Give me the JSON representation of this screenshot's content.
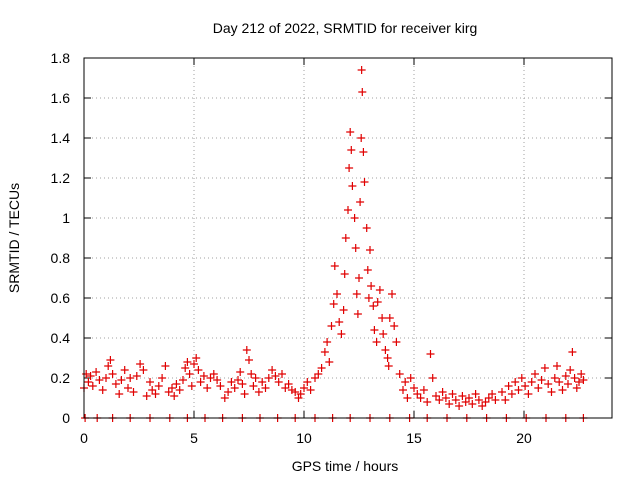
{
  "chart_data": {
    "type": "scatter",
    "title": "Day 212 of 2022, SRMTID for receiver kirg",
    "xlabel": "GPS time / hours",
    "ylabel": "SRMTID / TECUs",
    "xlim": [
      0,
      24
    ],
    "ylim": [
      0,
      1.8
    ],
    "xticks": [
      0,
      5,
      10,
      15,
      20
    ],
    "yticks": [
      0,
      0.2,
      0.4,
      0.6,
      0.8,
      1,
      1.2,
      1.4,
      1.6,
      1.8
    ],
    "xtick_labels": [
      "0",
      "5",
      "10",
      "15",
      "20"
    ],
    "ytick_labels": [
      "0",
      "0.2",
      "0.4",
      "0.6",
      "0.8",
      "1",
      "1.2",
      "1.4",
      "1.6",
      "1.8"
    ],
    "grid": true,
    "marker": "+",
    "color": "#e00000",
    "series": [
      {
        "name": "SRMTID",
        "points": [
          [
            0.0,
            0.15
          ],
          [
            0.1,
            0.22
          ],
          [
            0.2,
            0.18
          ],
          [
            0.3,
            0.21
          ],
          [
            0.4,
            0.16
          ],
          [
            0.55,
            0.23
          ],
          [
            0.7,
            0.19
          ],
          [
            0.85,
            0.14
          ],
          [
            1.0,
            0.2
          ],
          [
            1.1,
            0.26
          ],
          [
            1.2,
            0.29
          ],
          [
            1.3,
            0.22
          ],
          [
            1.45,
            0.17
          ],
          [
            1.6,
            0.12
          ],
          [
            1.7,
            0.19
          ],
          [
            1.85,
            0.24
          ],
          [
            2.0,
            0.15
          ],
          [
            2.1,
            0.2
          ],
          [
            2.25,
            0.13
          ],
          [
            2.4,
            0.21
          ],
          [
            2.55,
            0.27
          ],
          [
            2.7,
            0.24
          ],
          [
            2.85,
            0.11
          ],
          [
            3.0,
            0.18
          ],
          [
            3.1,
            0.14
          ],
          [
            3.25,
            0.12
          ],
          [
            3.4,
            0.16
          ],
          [
            3.55,
            0.2
          ],
          [
            3.7,
            0.26
          ],
          [
            3.85,
            0.13
          ],
          [
            4.0,
            0.15
          ],
          [
            4.1,
            0.11
          ],
          [
            4.2,
            0.17
          ],
          [
            4.35,
            0.14
          ],
          [
            4.5,
            0.19
          ],
          [
            4.6,
            0.25
          ],
          [
            4.7,
            0.28
          ],
          [
            4.8,
            0.22
          ],
          [
            4.9,
            0.16
          ],
          [
            5.0,
            0.27
          ],
          [
            5.1,
            0.3
          ],
          [
            5.2,
            0.24
          ],
          [
            5.3,
            0.18
          ],
          [
            5.45,
            0.21
          ],
          [
            5.6,
            0.15
          ],
          [
            5.75,
            0.2
          ],
          [
            5.9,
            0.22
          ],
          [
            6.05,
            0.19
          ],
          [
            6.2,
            0.16
          ],
          [
            6.4,
            0.1
          ],
          [
            6.55,
            0.13
          ],
          [
            6.7,
            0.18
          ],
          [
            6.85,
            0.15
          ],
          [
            7.0,
            0.19
          ],
          [
            7.1,
            0.23
          ],
          [
            7.2,
            0.17
          ],
          [
            7.3,
            0.12
          ],
          [
            7.4,
            0.34
          ],
          [
            7.5,
            0.29
          ],
          [
            7.6,
            0.22
          ],
          [
            7.7,
            0.16
          ],
          [
            7.8,
            0.2
          ],
          [
            7.95,
            0.13
          ],
          [
            8.1,
            0.18
          ],
          [
            8.25,
            0.15
          ],
          [
            8.4,
            0.2
          ],
          [
            8.55,
            0.24
          ],
          [
            8.7,
            0.21
          ],
          [
            8.85,
            0.18
          ],
          [
            9.0,
            0.22
          ],
          [
            9.15,
            0.15
          ],
          [
            9.3,
            0.17
          ],
          [
            9.45,
            0.14
          ],
          [
            9.6,
            0.13
          ],
          [
            9.75,
            0.1
          ],
          [
            9.85,
            0.12
          ],
          [
            10.0,
            0.15
          ],
          [
            10.15,
            0.18
          ],
          [
            10.3,
            0.14
          ],
          [
            10.5,
            0.2
          ],
          [
            10.65,
            0.22
          ],
          [
            10.8,
            0.25
          ],
          [
            10.95,
            0.33
          ],
          [
            11.05,
            0.38
          ],
          [
            11.15,
            0.28
          ],
          [
            11.25,
            0.46
          ],
          [
            11.35,
            0.57
          ],
          [
            11.4,
            0.76
          ],
          [
            11.5,
            0.62
          ],
          [
            11.6,
            0.48
          ],
          [
            11.7,
            0.42
          ],
          [
            11.8,
            0.54
          ],
          [
            11.85,
            0.72
          ],
          [
            11.9,
            0.9
          ],
          [
            12.0,
            1.04
          ],
          [
            12.05,
            1.25
          ],
          [
            12.1,
            1.43
          ],
          [
            12.15,
            1.34
          ],
          [
            12.2,
            1.16
          ],
          [
            12.3,
            1.0
          ],
          [
            12.35,
            0.85
          ],
          [
            12.4,
            0.62
          ],
          [
            12.45,
            0.52
          ],
          [
            12.5,
            0.7
          ],
          [
            12.55,
            1.08
          ],
          [
            12.6,
            1.4
          ],
          [
            12.62,
            1.74
          ],
          [
            12.65,
            1.63
          ],
          [
            12.7,
            1.33
          ],
          [
            12.75,
            1.18
          ],
          [
            12.85,
            0.95
          ],
          [
            12.9,
            0.74
          ],
          [
            12.95,
            0.6
          ],
          [
            13.0,
            0.84
          ],
          [
            13.05,
            0.66
          ],
          [
            13.15,
            0.56
          ],
          [
            13.2,
            0.44
          ],
          [
            13.3,
            0.38
          ],
          [
            13.35,
            0.58
          ],
          [
            13.45,
            0.64
          ],
          [
            13.55,
            0.5
          ],
          [
            13.6,
            0.42
          ],
          [
            13.7,
            0.34
          ],
          [
            13.8,
            0.3
          ],
          [
            13.85,
            0.26
          ],
          [
            13.9,
            0.5
          ],
          [
            14.0,
            0.62
          ],
          [
            14.1,
            0.46
          ],
          [
            14.2,
            0.38
          ],
          [
            14.35,
            0.22
          ],
          [
            14.5,
            0.14
          ],
          [
            14.6,
            0.18
          ],
          [
            14.7,
            0.1
          ],
          [
            14.85,
            0.2
          ],
          [
            15.0,
            0.15
          ],
          [
            15.15,
            0.12
          ],
          [
            15.3,
            0.1
          ],
          [
            15.45,
            0.14
          ],
          [
            15.6,
            0.08
          ],
          [
            15.75,
            0.32
          ],
          [
            15.85,
            0.2
          ],
          [
            16.0,
            0.11
          ],
          [
            16.15,
            0.09
          ],
          [
            16.3,
            0.13
          ],
          [
            16.45,
            0.1
          ],
          [
            16.6,
            0.07
          ],
          [
            16.75,
            0.12
          ],
          [
            16.9,
            0.09
          ],
          [
            17.05,
            0.06
          ],
          [
            17.2,
            0.11
          ],
          [
            17.35,
            0.08
          ],
          [
            17.5,
            0.1
          ],
          [
            17.65,
            0.07
          ],
          [
            17.8,
            0.12
          ],
          [
            17.95,
            0.09
          ],
          [
            18.1,
            0.06
          ],
          [
            18.25,
            0.08
          ],
          [
            18.4,
            0.1
          ],
          [
            18.55,
            0.12
          ],
          [
            18.7,
            0.09
          ],
          [
            19.0,
            0.13
          ],
          [
            19.15,
            0.09
          ],
          [
            19.3,
            0.16
          ],
          [
            19.45,
            0.12
          ],
          [
            19.6,
            0.18
          ],
          [
            19.75,
            0.14
          ],
          [
            19.9,
            0.2
          ],
          [
            20.05,
            0.16
          ],
          [
            20.2,
            0.12
          ],
          [
            20.35,
            0.18
          ],
          [
            20.5,
            0.22
          ],
          [
            20.65,
            0.15
          ],
          [
            20.8,
            0.19
          ],
          [
            20.95,
            0.25
          ],
          [
            21.1,
            0.17
          ],
          [
            21.25,
            0.13
          ],
          [
            21.4,
            0.2
          ],
          [
            21.5,
            0.26
          ],
          [
            21.6,
            0.18
          ],
          [
            21.75,
            0.14
          ],
          [
            21.9,
            0.21
          ],
          [
            22.0,
            0.17
          ],
          [
            22.1,
            0.24
          ],
          [
            22.2,
            0.33
          ],
          [
            22.3,
            0.2
          ],
          [
            22.4,
            0.15
          ],
          [
            22.5,
            0.18
          ],
          [
            22.6,
            0.22
          ],
          [
            22.7,
            0.19
          ],
          [
            0.05,
            0.0
          ],
          [
            0.6,
            0.0
          ],
          [
            1.3,
            0.0
          ],
          [
            2.1,
            0.0
          ],
          [
            3.0,
            0.0
          ],
          [
            3.9,
            0.0
          ],
          [
            4.7,
            0.0
          ],
          [
            5.5,
            0.0
          ],
          [
            6.3,
            0.0
          ],
          [
            7.2,
            0.0
          ],
          [
            8.0,
            0.0
          ],
          [
            8.8,
            0.0
          ],
          [
            9.6,
            0.0
          ],
          [
            10.5,
            0.0
          ],
          [
            11.3,
            0.0
          ],
          [
            12.1,
            0.0
          ],
          [
            13.0,
            0.0
          ],
          [
            13.9,
            0.0
          ],
          [
            14.8,
            0.0
          ],
          [
            15.6,
            0.0
          ],
          [
            16.5,
            0.0
          ],
          [
            17.4,
            0.0
          ],
          [
            18.3,
            0.0
          ],
          [
            19.2,
            0.0
          ],
          [
            20.1,
            0.0
          ],
          [
            21.0,
            0.0
          ],
          [
            21.9,
            0.0
          ],
          [
            22.7,
            0.0
          ]
        ]
      }
    ]
  }
}
